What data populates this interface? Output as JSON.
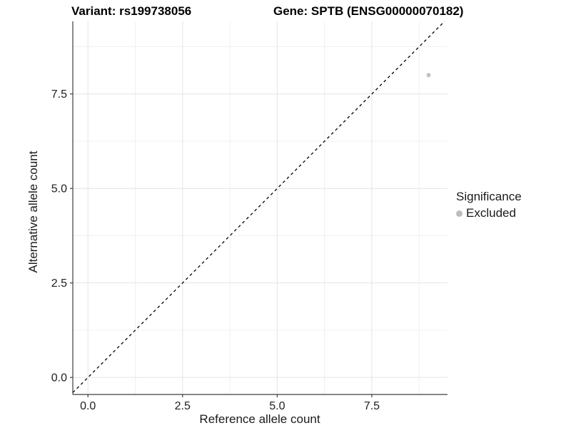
{
  "header": {
    "variant_title": "Variant: rs199738056",
    "gene_title": "Gene: SPTB (ENSG00000070182)"
  },
  "legend": {
    "title": "Significance",
    "items": [
      {
        "label": "Excluded",
        "color": "#bdbdbd",
        "marker": "circle-icon"
      }
    ]
  },
  "style_colors": {
    "axis_line": "#3d3d3d",
    "grid_major": "#e4e4e4",
    "grid_minor": "#f0f0f0",
    "tick_text": "#1f1f1f",
    "point": "#c2c2c2",
    "reference_line": "#000000",
    "title_text": "#000000",
    "background": "#ffffff"
  },
  "chart_data": {
    "type": "scatter",
    "title": "Variant: rs199738056 | Gene: SPTB (ENSG00000070182)",
    "xlabel": "Reference allele count",
    "ylabel": "Alternative allele count",
    "xlim": [
      -0.4,
      9.5
    ],
    "ylim": [
      -0.45,
      9.42
    ],
    "x_ticks": [
      0.0,
      2.5,
      5.0,
      7.5
    ],
    "y_ticks": [
      0.0,
      2.5,
      5.0,
      7.5
    ],
    "x_tick_labels": [
      "0.0",
      "2.5",
      "5.0",
      "7.5"
    ],
    "y_tick_labels": [
      "0.0",
      "2.5",
      "5.0",
      "7.5"
    ],
    "x_minor_ticks": [
      1.25,
      3.75,
      6.25,
      8.75
    ],
    "y_minor_ticks": [
      1.25,
      3.75,
      6.25,
      8.75
    ],
    "grid": true,
    "legend_position": "right",
    "series": [
      {
        "name": "Excluded",
        "color": "#c2c2c2",
        "points": [
          {
            "x": 9,
            "y": 8
          }
        ]
      }
    ],
    "reference_line": {
      "type": "identity",
      "style": "dashed",
      "color": "#000000"
    }
  }
}
